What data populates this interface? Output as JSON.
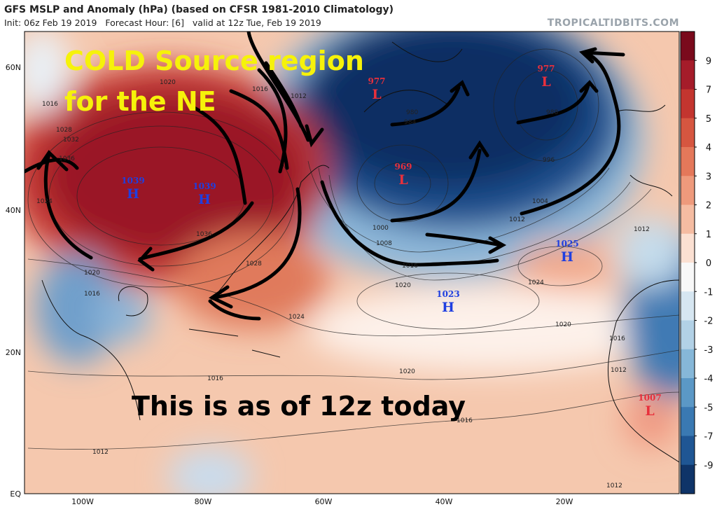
{
  "header": {
    "title": "GFS MSLP and Anomaly (hPa) (based on CFSR 1981-2010 Climatology)",
    "subtitle": "Init: 06z Feb 19 2019   Forecast Hour: [6]   valid at 12z Tue, Feb 19 2019",
    "source": "TROPICALTIDBITS.COM"
  },
  "annotations": [
    "COLD Source region",
    "for the NE",
    "This is as of 12z today"
  ],
  "centers": [
    {
      "value": "977",
      "letter": "L",
      "color": "#e8303c"
    },
    {
      "value": "977",
      "letter": "L",
      "color": "#e8303c"
    },
    {
      "value": "969",
      "letter": "L",
      "color": "#e8303c"
    },
    {
      "value": "1039",
      "letter": "H",
      "color": "#1f3fe0"
    },
    {
      "value": "1039",
      "letter": "H",
      "color": "#1f3fe0"
    },
    {
      "value": "1025",
      "letter": "H",
      "color": "#1f3fe0"
    },
    {
      "value": "1023",
      "letter": "H",
      "color": "#1f3fe0"
    },
    {
      "value": "1007",
      "letter": "L",
      "color": "#e8303c"
    }
  ],
  "isobar_labels": [
    "1020",
    "1016",
    "1012",
    "1016",
    "1028",
    "1032",
    "1036",
    "1024",
    "1020",
    "1016",
    "980",
    "984",
    "1000",
    "1008",
    "1016",
    "1020",
    "1024",
    "1024",
    "1020",
    "1016",
    "1012",
    "1020",
    "1016",
    "1016",
    "1012",
    "1012",
    "1012",
    "1004",
    "996",
    "988",
    "1036",
    "1028",
    "1012"
  ],
  "lat_labels": [
    "60N",
    "40N",
    "20N",
    "EQ"
  ],
  "lon_labels": [
    "100W",
    "80W",
    "60W",
    "40W",
    "20W"
  ],
  "colorbar": {
    "ticks": [
      9,
      7,
      5,
      4,
      3,
      2,
      1,
      0,
      -1,
      -2,
      -3,
      -4,
      -5,
      -7,
      -9
    ],
    "colors": [
      "#7a0a1c",
      "#a51c2a",
      "#c3352f",
      "#d65640",
      "#e4785a",
      "#ee9a7c",
      "#f5bca2",
      "#fbe0d2",
      "#f8f8f8",
      "#d6e6f1",
      "#b2d1e6",
      "#86b7d8",
      "#5b98c6",
      "#3a79b2",
      "#1f5694",
      "#0f3468"
    ]
  }
}
